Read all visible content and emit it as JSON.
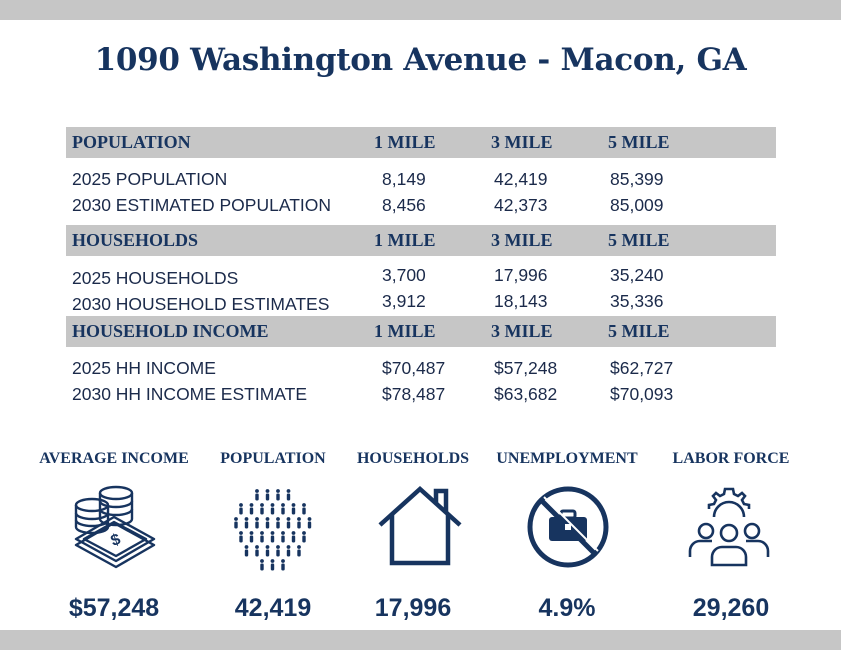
{
  "title": "1090 Washington Avenue - Macon, GA",
  "sections": [
    {
      "header": "POPULATION",
      "cols": [
        "1 MILE",
        "3 MILE",
        "5 MILE"
      ],
      "rows": [
        {
          "label": "2025 POPULATION",
          "values": [
            "8,149",
            "42,419",
            "85,399"
          ]
        },
        {
          "label": "2030 ESTIMATED POPULATION",
          "values": [
            "8,456",
            "42,373",
            "85,009"
          ]
        }
      ]
    },
    {
      "header": "HOUSEHOLDS",
      "cols": [
        "1 MILE",
        "3 MILE",
        "5 MILE"
      ],
      "rows": [
        {
          "label": "2025 HOUSEHOLDS",
          "values": [
            "3,700",
            "17,996",
            "35,240"
          ]
        },
        {
          "label": "2030 HOUSEHOLD ESTIMATES",
          "values": [
            "3,912",
            "18,143",
            "35,336"
          ]
        }
      ]
    },
    {
      "header": "HOUSEHOLD INCOME",
      "cols": [
        "1 MILE",
        "3 MILE",
        "5 MILE"
      ],
      "rows": [
        {
          "label": "2025 HH INCOME",
          "values": [
            "$70,487",
            "$57,248",
            "$62,727"
          ]
        },
        {
          "label": "2030 HH INCOME ESTIMATE",
          "values": [
            "$78,487",
            "$63,682",
            "$70,093"
          ]
        }
      ]
    }
  ],
  "stats": [
    {
      "label": "AVERAGE INCOME",
      "value": "$57,248",
      "icon": "money-stack-icon"
    },
    {
      "label": "POPULATION",
      "value": "42,419",
      "icon": "people-crowd-icon"
    },
    {
      "label": "HOUSEHOLDS",
      "value": "17,996",
      "icon": "house-icon"
    },
    {
      "label": "UNEMPLOYMENT",
      "value": "4.9%",
      "icon": "no-briefcase-icon"
    },
    {
      "label": "LABOR FORCE",
      "value": "29,260",
      "icon": "team-gear-icon"
    }
  ],
  "colors": {
    "navy": "#17345f",
    "gray_band": "#c6c6c6"
  }
}
